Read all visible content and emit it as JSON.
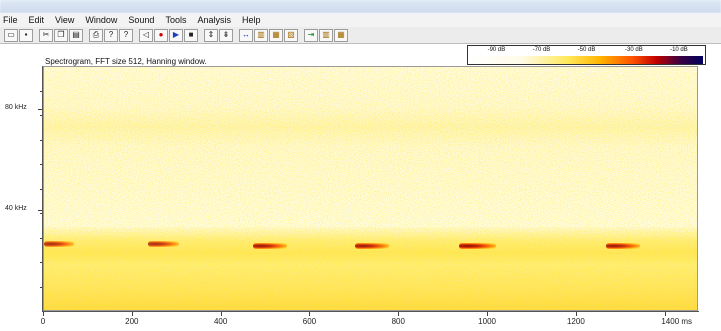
{
  "window": {
    "title": ""
  },
  "menu": {
    "items": [
      {
        "label": "File"
      },
      {
        "label": "Edit"
      },
      {
        "label": "View"
      },
      {
        "label": "Window"
      },
      {
        "label": "Sound"
      },
      {
        "label": "Tools"
      },
      {
        "label": "Analysis"
      },
      {
        "label": "Help"
      }
    ]
  },
  "toolbar": {
    "buttons": [
      {
        "icon": "open-folder-icon",
        "glyph": "▭"
      },
      {
        "icon": "save-icon",
        "glyph": "▪"
      },
      {
        "icon": "cut-icon",
        "glyph": "✂"
      },
      {
        "icon": "copy-icon",
        "glyph": "❐"
      },
      {
        "icon": "paste-icon",
        "glyph": "▤"
      },
      {
        "icon": "print-icon",
        "glyph": "⎙"
      },
      {
        "icon": "help-icon",
        "glyph": "?"
      },
      {
        "icon": "context-help-icon",
        "glyph": "?"
      },
      {
        "icon": "rewind-icon",
        "glyph": "◁"
      },
      {
        "icon": "record-icon",
        "glyph": "●"
      },
      {
        "icon": "play-icon",
        "glyph": "▶"
      },
      {
        "icon": "stop-icon",
        "glyph": "■"
      },
      {
        "icon": "zoom-in-vertical-icon",
        "glyph": "⇕"
      },
      {
        "icon": "zoom-out-vertical-icon",
        "glyph": "⇟"
      },
      {
        "icon": "zoom-horizontal-icon",
        "glyph": "↔"
      },
      {
        "icon": "spectrogram-view-icon",
        "glyph": "▥"
      },
      {
        "icon": "power-spectrum-icon",
        "glyph": "▦"
      },
      {
        "icon": "waveform-view-icon",
        "glyph": "▧"
      },
      {
        "icon": "next-section-icon",
        "glyph": "⇥"
      },
      {
        "icon": "spectrum-compare-icon",
        "glyph": "▥"
      },
      {
        "icon": "average-spectrum-icon",
        "glyph": "▦"
      }
    ]
  },
  "colors": {
    "accent_red": "#c00000",
    "spectrogram_background": "#fffef7",
    "energy_yellow": "#ffe95a"
  },
  "scale": {
    "labels": [
      "-90 dB",
      "-70 dB",
      "-50 dB",
      "-30 dB",
      "-10 dB"
    ]
  },
  "plot": {
    "title": "Spectrogram, FFT size 512, Hanning window."
  },
  "chart_data": {
    "type": "heatmap",
    "title": "Spectrogram, FFT size 512, Hanning window.",
    "xlabel": "ms",
    "ylabel": "kHz",
    "x_ticks": [
      "0",
      "200",
      "400",
      "600",
      "800",
      "1000",
      "1200",
      "1400 ms"
    ],
    "x_tick_values": [
      0,
      200,
      400,
      600,
      800,
      1000,
      1200,
      1400
    ],
    "y_ticks": [
      "80 kHz",
      "40 kHz"
    ],
    "y_tick_values": [
      80,
      40
    ],
    "xlim": [
      0,
      1475
    ],
    "ylim": [
      0,
      97
    ],
    "color_scale_db": [
      -90,
      -70,
      -50,
      -30,
      -10
    ],
    "calls": [
      {
        "start_ms": 0,
        "freq_khz": 27,
        "intensity_db": -45
      },
      {
        "start_ms": 235,
        "freq_khz": 27,
        "intensity_db": -45
      },
      {
        "start_ms": 470,
        "freq_khz": 26,
        "intensity_db": -30
      },
      {
        "start_ms": 700,
        "freq_khz": 26,
        "intensity_db": -30
      },
      {
        "start_ms": 935,
        "freq_khz": 26,
        "intensity_db": -20
      },
      {
        "start_ms": 1265,
        "freq_khz": 26,
        "intensity_db": -30
      }
    ]
  }
}
